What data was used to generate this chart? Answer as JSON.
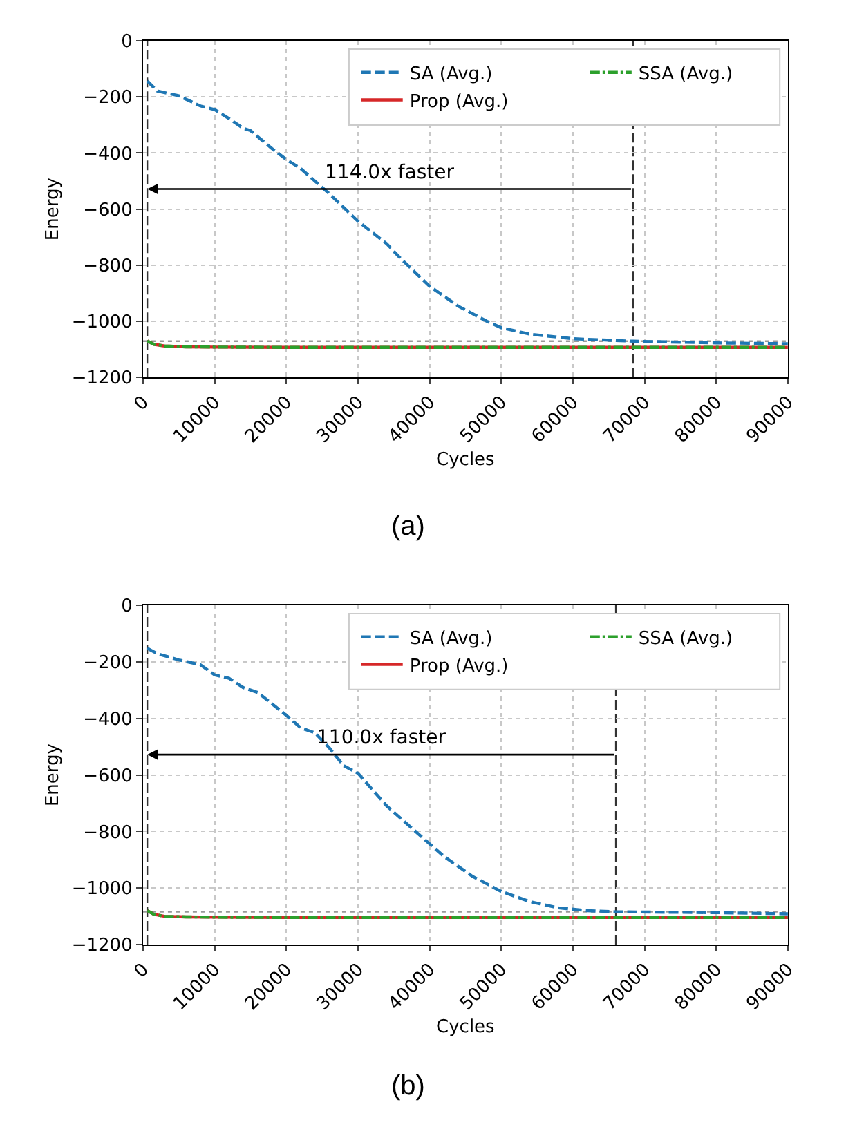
{
  "chart_data": [
    {
      "type": "line",
      "xlabel": "Cycles",
      "ylabel": "Energy",
      "xlim": [
        0,
        90000
      ],
      "xticks": [
        0,
        10000,
        20000,
        30000,
        40000,
        50000,
        60000,
        70000,
        80000,
        90000
      ],
      "ylim": [
        -1200,
        0
      ],
      "yticks": [
        -1200,
        -1000,
        -800,
        -600,
        -400,
        -200,
        0
      ],
      "grid": true,
      "legend": "top right",
      "series": [
        {
          "name": "SA (Avg.)",
          "color": "#1f77b4",
          "line_style": "dashed",
          "x": [
            600,
            2000,
            5000,
            8000,
            10000,
            12000,
            14000,
            15000,
            18000,
            20000,
            22000,
            24000,
            26000,
            30000,
            34000,
            36000,
            40000,
            44000,
            48000,
            50000,
            54000,
            60000,
            68400,
            80000,
            90000
          ],
          "values": [
            -143,
            -179,
            -196,
            -232,
            -245,
            -277,
            -312,
            -320,
            -384,
            -423,
            -455,
            -500,
            -545,
            -643,
            -723,
            -777,
            -875,
            -946,
            -1000,
            -1023,
            -1046,
            -1062,
            -1071,
            -1077,
            -1080
          ]
        },
        {
          "name": "Prop (Avg.)",
          "color": "#d62728",
          "line_style": "solid",
          "x": [
            600,
            1500,
            3000,
            6000,
            10000,
            20000,
            90000
          ],
          "values": [
            -1070,
            -1082,
            -1088,
            -1091,
            -1092,
            -1093,
            -1093
          ]
        },
        {
          "name": "SSA (Avg.)",
          "color": "#2ca02c",
          "line_style": "dashdot",
          "x": [
            600,
            1500,
            3000,
            6000,
            10000,
            20000,
            90000
          ],
          "values": [
            -1070,
            -1082,
            -1088,
            -1091,
            -1092,
            -1093,
            -1093
          ]
        }
      ],
      "ref_lines": [
        {
          "axis": "x",
          "value": 600,
          "color": "#333333",
          "line_style": "dashed"
        },
        {
          "axis": "x",
          "value": 68400,
          "color": "#333333",
          "line_style": "dashed"
        },
        {
          "axis": "y",
          "value": -1071,
          "color": "#999999",
          "line_style": "dotted"
        }
      ],
      "annotations": [
        "114.0x faster",
        "(a)"
      ]
    },
    {
      "type": "line",
      "xlabel": "Cycles",
      "ylabel": "Energy",
      "xlim": [
        0,
        90000
      ],
      "xticks": [
        0,
        10000,
        20000,
        30000,
        40000,
        50000,
        60000,
        70000,
        80000,
        90000
      ],
      "ylim": [
        -1200,
        0
      ],
      "yticks": [
        -1200,
        -1000,
        -800,
        -600,
        -400,
        -200,
        0
      ],
      "grid": true,
      "legend": "top right",
      "series": [
        {
          "name": "SA (Avg.)",
          "color": "#1f77b4",
          "line_style": "dashed",
          "x": [
            600,
            2000,
            5000,
            8000,
            10000,
            12000,
            14000,
            16000,
            20000,
            22000,
            24000,
            26000,
            28000,
            30000,
            34000,
            38000,
            42000,
            46000,
            50000,
            54000,
            58000,
            62000,
            66000,
            80000,
            90000
          ],
          "values": [
            -152,
            -171,
            -193,
            -210,
            -246,
            -258,
            -291,
            -308,
            -389,
            -433,
            -451,
            -504,
            -567,
            -594,
            -709,
            -799,
            -888,
            -959,
            -1012,
            -1048,
            -1070,
            -1080,
            -1084,
            -1087,
            -1091
          ]
        },
        {
          "name": "Prop (Avg.)",
          "color": "#d62728",
          "line_style": "solid",
          "x": [
            600,
            1500,
            3000,
            6000,
            10000,
            20000,
            90000
          ],
          "values": [
            -1080,
            -1093,
            -1100,
            -1102,
            -1103,
            -1104,
            -1104
          ]
        },
        {
          "name": "SSA (Avg.)",
          "color": "#2ca02c",
          "line_style": "dashdot",
          "x": [
            600,
            1500,
            3000,
            6000,
            10000,
            20000,
            90000
          ],
          "values": [
            -1080,
            -1093,
            -1100,
            -1102,
            -1103,
            -1104,
            -1104
          ]
        }
      ],
      "ref_lines": [
        {
          "axis": "x",
          "value": 600,
          "color": "#333333",
          "line_style": "dashed"
        },
        {
          "axis": "x",
          "value": 66000,
          "color": "#333333",
          "line_style": "dashed"
        },
        {
          "axis": "y",
          "value": -1084,
          "color": "#999999",
          "line_style": "dotted"
        }
      ],
      "annotations": [
        "110.0x faster",
        "(b)"
      ]
    }
  ]
}
